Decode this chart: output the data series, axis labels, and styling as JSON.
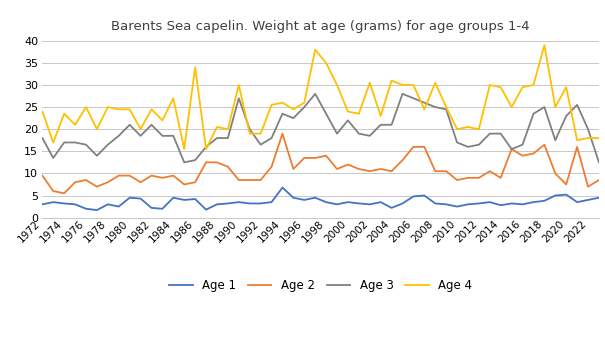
{
  "title": "Barents Sea capelin. Weight at age (grams) for age groups 1-4",
  "years": [
    1972,
    1973,
    1974,
    1975,
    1976,
    1977,
    1978,
    1979,
    1980,
    1981,
    1982,
    1983,
    1984,
    1985,
    1986,
    1987,
    1988,
    1989,
    1990,
    1991,
    1992,
    1993,
    1994,
    1995,
    1996,
    1997,
    1998,
    1999,
    2000,
    2001,
    2002,
    2003,
    2004,
    2005,
    2006,
    2007,
    2008,
    2009,
    2010,
    2011,
    2012,
    2013,
    2014,
    2015,
    2016,
    2017,
    2018,
    2019,
    2020,
    2021,
    2022,
    2023
  ],
  "age1": [
    3.0,
    3.5,
    3.2,
    3.0,
    2.0,
    1.7,
    3.0,
    2.5,
    4.5,
    4.3,
    2.2,
    2.0,
    4.5,
    4.0,
    4.2,
    1.8,
    3.0,
    3.2,
    3.5,
    3.2,
    3.2,
    3.5,
    6.8,
    4.5,
    4.0,
    4.5,
    3.5,
    3.0,
    3.5,
    3.2,
    3.0,
    3.5,
    2.2,
    3.2,
    4.8,
    5.0,
    3.2,
    3.0,
    2.5,
    3.0,
    3.2,
    3.5,
    2.8,
    3.2,
    3.0,
    3.5,
    3.8,
    5.0,
    5.2,
    3.5,
    4.0,
    4.5
  ],
  "age2": [
    9.5,
    6.0,
    5.5,
    8.0,
    8.5,
    7.0,
    8.0,
    9.5,
    9.5,
    8.0,
    9.5,
    9.0,
    9.5,
    7.5,
    8.0,
    12.5,
    12.5,
    11.5,
    8.5,
    8.5,
    8.5,
    11.5,
    19.0,
    11.0,
    13.5,
    13.5,
    14.0,
    11.0,
    12.0,
    11.0,
    10.5,
    11.0,
    10.5,
    13.0,
    16.0,
    16.0,
    10.5,
    10.5,
    8.5,
    9.0,
    9.0,
    10.5,
    9.0,
    15.5,
    14.0,
    14.5,
    16.5,
    10.0,
    7.5,
    16.0,
    7.0,
    8.5
  ],
  "age3": [
    18.0,
    13.5,
    17.0,
    17.0,
    16.5,
    14.0,
    16.5,
    18.5,
    21.0,
    18.5,
    21.0,
    18.5,
    18.5,
    12.5,
    13.0,
    16.0,
    18.0,
    18.0,
    27.0,
    20.0,
    16.5,
    18.0,
    23.5,
    22.5,
    25.0,
    28.0,
    23.5,
    19.0,
    22.0,
    19.0,
    18.5,
    21.0,
    21.0,
    28.0,
    27.0,
    26.0,
    25.0,
    24.5,
    17.0,
    16.0,
    16.5,
    19.0,
    19.0,
    15.5,
    16.5,
    23.5,
    25.0,
    17.5,
    23.0,
    25.5,
    20.0,
    12.5
  ],
  "age4": [
    24.0,
    17.0,
    23.5,
    21.0,
    25.0,
    20.0,
    25.0,
    24.5,
    24.5,
    20.0,
    24.5,
    22.0,
    27.0,
    15.5,
    34.0,
    15.5,
    20.5,
    20.0,
    30.0,
    19.0,
    19.0,
    25.5,
    26.0,
    24.5,
    26.0,
    38.0,
    35.0,
    30.0,
    24.0,
    23.5,
    30.5,
    23.0,
    31.0,
    30.0,
    30.0,
    24.5,
    30.5,
    25.0,
    20.0,
    20.5,
    20.0,
    30.0,
    29.5,
    25.0,
    29.5,
    30.0,
    39.0,
    25.0,
    29.5,
    17.5,
    18.0,
    18.0
  ],
  "age1_color": "#4472c4",
  "age2_color": "#ed7d31",
  "age3_color": "#808080",
  "age4_color": "#ffc000",
  "ylim": [
    0,
    40
  ],
  "yticks": [
    0,
    5,
    10,
    15,
    20,
    25,
    30,
    35,
    40
  ],
  "background_color": "#ffffff",
  "grid_color": "#c8c8c8",
  "legend_labels": [
    "Age 1",
    "Age 2",
    "Age 3",
    "Age 4"
  ]
}
